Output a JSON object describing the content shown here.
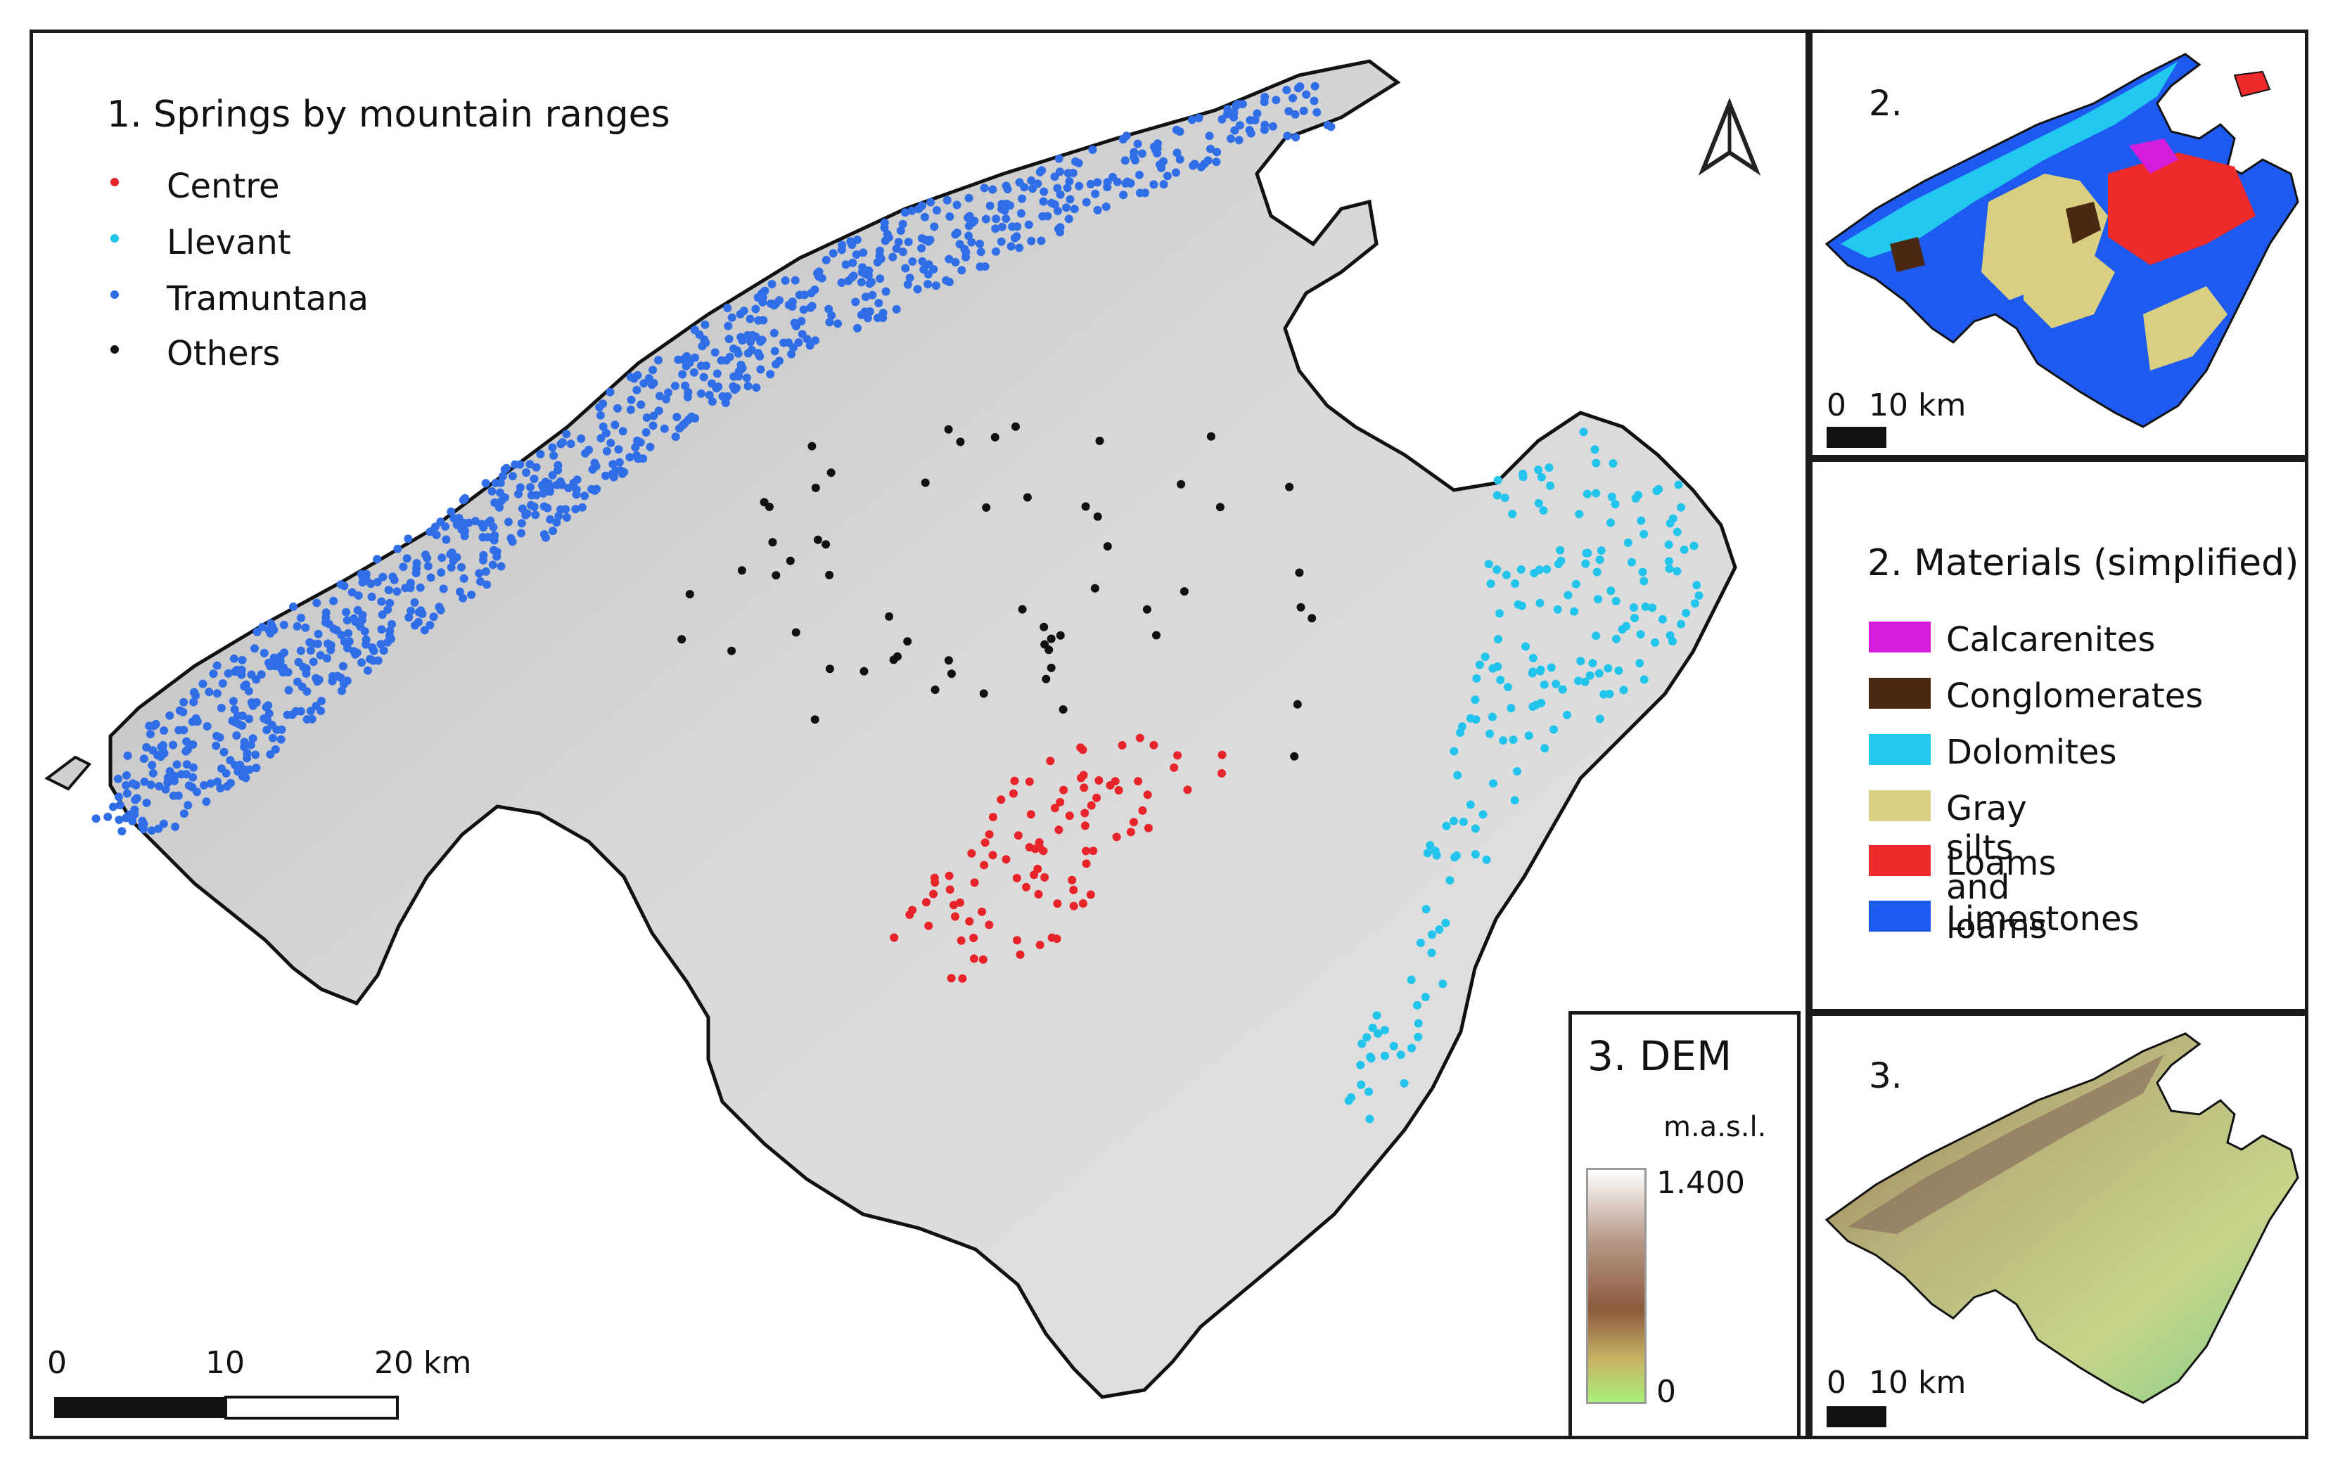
{
  "main_map": {
    "title_number": "1.",
    "title": "Springs by mountain ranges",
    "legend": [
      {
        "label": "Centre",
        "color": "#e8242b"
      },
      {
        "label": "Llevant",
        "color": "#22c4ec"
      },
      {
        "label": "Tramuntana",
        "color": "#2f6ee6"
      },
      {
        "label": "Others",
        "color": "#111111"
      }
    ],
    "north_arrow": "north-arrow-icon",
    "scale_bar": {
      "ticks": [
        "0",
        "10",
        "20 km"
      ]
    }
  },
  "dem_legend": {
    "title": "3. DEM",
    "unit": "m.a.s.l.",
    "max_label": "1.400",
    "min_label": "0",
    "colors": [
      "#ffffff",
      "#b89a8a",
      "#8c5a3c",
      "#c8b464",
      "#a8f078"
    ]
  },
  "materials_map": {
    "title": "2.",
    "scale_bar": {
      "ticks": [
        "0",
        "10 km"
      ]
    }
  },
  "materials_legend": {
    "title": "2. Materials (simplified)",
    "items": [
      {
        "label": "Calcarenites",
        "color": "#d21edc"
      },
      {
        "label": "Conglomerates",
        "color": "#4a2812"
      },
      {
        "label": "Dolomites",
        "color": "#22c8ee"
      },
      {
        "label": "Gray silts and loams",
        "color": "#d8d080"
      },
      {
        "label": "Loams",
        "color": "#ee2a2a"
      },
      {
        "label": "Limestones",
        "color": "#1e5af0"
      }
    ]
  },
  "dem_map": {
    "title": "3.",
    "scale_bar": {
      "ticks": [
        "0",
        "10 km"
      ]
    }
  }
}
